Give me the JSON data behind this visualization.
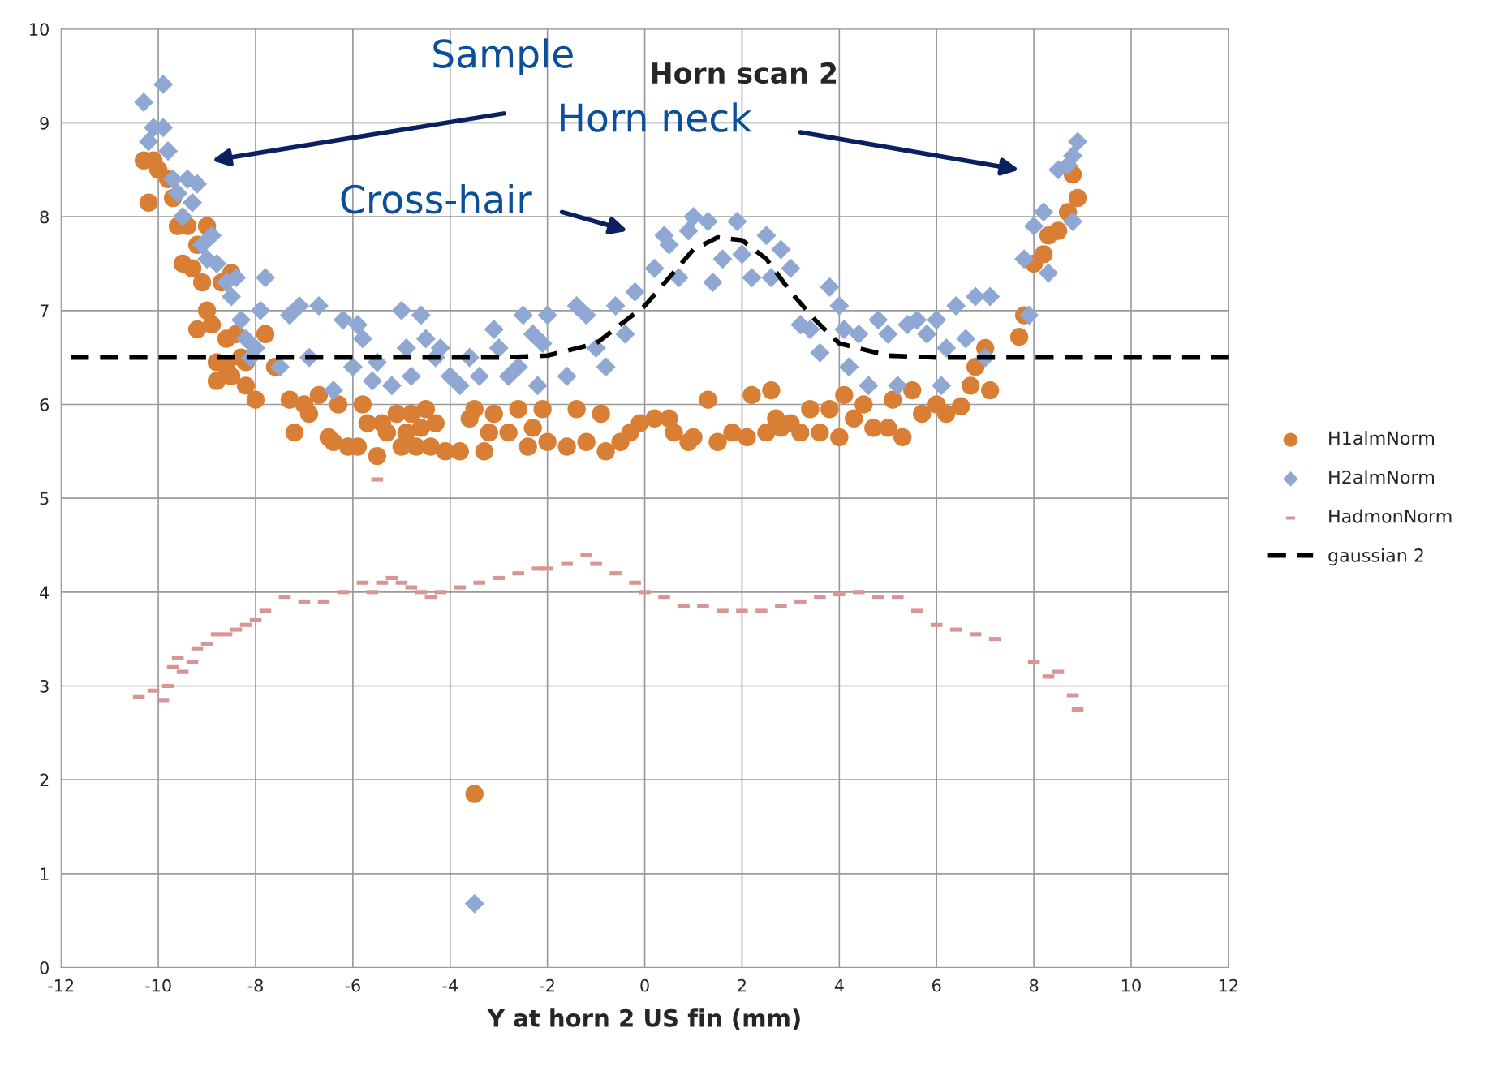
{
  "chart_data": {
    "type": "scatter",
    "title": "Horn scan 2",
    "xlabel": "Y at horn 2 US fin (mm)",
    "annotations": [
      "Sample",
      "Horn neck",
      "Cross-hair"
    ],
    "xlim": [
      -12,
      12
    ],
    "xticks": [
      -12,
      -10,
      -8,
      -6,
      -4,
      -2,
      0,
      2,
      4,
      6,
      8,
      10,
      12
    ],
    "ylim": [
      0,
      10
    ],
    "yticks": [
      0,
      1,
      2,
      3,
      4,
      5,
      6,
      7,
      8,
      9,
      10
    ],
    "grid": true,
    "legend": "right",
    "series": [
      {
        "name": "H1almNorm",
        "color": "#d97f35",
        "marker": "circle",
        "x": [
          -10.3,
          -10.1,
          -10.0,
          -10.2,
          -9.8,
          -9.7,
          -9.6,
          -9.4,
          -9.3,
          -9.5,
          -9.2,
          -9.0,
          -9.1,
          -9.0,
          -9.2,
          -8.9,
          -8.7,
          -8.5,
          -8.6,
          -8.4,
          -8.8,
          -8.6,
          -8.8,
          -8.5,
          -8.3,
          -8.2,
          -8.0,
          -8.2,
          -7.8,
          -7.6,
          -7.3,
          -7.2,
          -7.0,
          -6.9,
          -6.7,
          -6.5,
          -6.4,
          -6.3,
          -6.1,
          -5.9,
          -5.8,
          -5.7,
          -5.5,
          -5.4,
          -5.3,
          -5.1,
          -5.0,
          -4.9,
          -4.8,
          -4.7,
          -4.6,
          -4.5,
          -4.4,
          -4.3,
          -4.1,
          -3.8,
          -3.6,
          -3.5,
          -3.3,
          -3.2,
          -3.1,
          -2.8,
          -2.6,
          -2.4,
          -2.3,
          -2.1,
          -2.0,
          -1.6,
          -1.4,
          -1.2,
          -0.9,
          -0.8,
          -0.5,
          -0.3,
          -0.1,
          0.2,
          0.5,
          0.6,
          0.9,
          1.0,
          1.3,
          1.5,
          1.8,
          2.1,
          2.2,
          2.5,
          2.6,
          2.7,
          2.8,
          3.0,
          3.2,
          3.4,
          3.6,
          3.8,
          4.0,
          4.1,
          4.3,
          4.5,
          4.7,
          5.0,
          5.1,
          5.3,
          5.5,
          5.7,
          6.0,
          6.2,
          6.5,
          6.7,
          6.8,
          7.0,
          7.1,
          7.7,
          7.8,
          8.0,
          8.2,
          8.3,
          8.5,
          8.7,
          8.8,
          8.9,
          -3.5
        ],
        "values": [
          8.6,
          8.6,
          8.5,
          8.15,
          8.4,
          8.2,
          7.9,
          7.9,
          7.45,
          7.5,
          7.7,
          7.9,
          7.3,
          7.0,
          6.8,
          6.85,
          7.3,
          7.4,
          6.7,
          6.75,
          6.45,
          6.4,
          6.25,
          6.3,
          6.5,
          6.2,
          6.05,
          6.45,
          6.75,
          6.4,
          6.05,
          5.7,
          6.0,
          5.9,
          6.1,
          5.65,
          5.6,
          6.0,
          5.55,
          5.55,
          6.0,
          5.8,
          5.45,
          5.8,
          5.7,
          5.9,
          5.55,
          5.7,
          5.9,
          5.55,
          5.75,
          5.95,
          5.55,
          5.8,
          5.5,
          5.5,
          5.85,
          5.95,
          5.5,
          5.7,
          5.9,
          5.7,
          5.95,
          5.55,
          5.75,
          5.95,
          5.6,
          5.55,
          5.95,
          5.6,
          5.9,
          5.5,
          5.6,
          5.7,
          5.8,
          5.85,
          5.85,
          5.7,
          5.6,
          5.65,
          6.05,
          5.6,
          5.7,
          5.65,
          6.1,
          5.7,
          6.15,
          5.85,
          5.75,
          5.8,
          5.7,
          5.95,
          5.7,
          5.95,
          5.65,
          6.1,
          5.85,
          6.0,
          5.75,
          5.75,
          6.05,
          5.65,
          6.15,
          5.9,
          6.0,
          5.9,
          5.98,
          6.2,
          6.4,
          6.6,
          6.15,
          6.72,
          6.95,
          7.5,
          7.6,
          7.8,
          7.85,
          8.05,
          8.45,
          8.2,
          1.85
        ]
      },
      {
        "name": "H2almNorm",
        "color": "#8fa8d3",
        "marker": "diamond",
        "x": [
          -10.3,
          -9.9,
          -10.2,
          -10.1,
          -9.9,
          -9.8,
          -9.7,
          -9.6,
          -9.5,
          -9.4,
          -9.3,
          -9.2,
          -9.1,
          -9.0,
          -8.9,
          -8.8,
          -8.6,
          -8.5,
          -8.4,
          -8.3,
          -8.2,
          -8.1,
          -8.0,
          -7.8,
          -7.9,
          -7.5,
          -7.3,
          -7.1,
          -6.9,
          -6.7,
          -6.4,
          -6.2,
          -6.0,
          -5.9,
          -5.8,
          -5.6,
          -5.5,
          -5.2,
          -5.0,
          -4.9,
          -4.8,
          -4.6,
          -4.5,
          -4.3,
          -4.2,
          -4.0,
          -3.8,
          -3.6,
          -3.4,
          -3.1,
          -3.0,
          -2.8,
          -2.6,
          -2.5,
          -2.3,
          -2.2,
          -2.1,
          -2.0,
          -1.6,
          -1.4,
          -1.2,
          -1.0,
          -0.8,
          -0.6,
          -0.4,
          -0.2,
          0.2,
          0.4,
          0.5,
          0.7,
          0.9,
          1.0,
          1.3,
          1.4,
          1.6,
          1.9,
          2.0,
          2.2,
          2.5,
          2.6,
          2.8,
          3.0,
          3.2,
          3.4,
          3.6,
          3.8,
          4.0,
          4.1,
          4.2,
          4.4,
          4.6,
          4.8,
          5.0,
          5.2,
          5.4,
          5.6,
          5.8,
          6.0,
          6.1,
          6.2,
          6.4,
          6.6,
          6.8,
          7.0,
          7.1,
          7.8,
          7.9,
          8.0,
          8.2,
          8.3,
          8.5,
          8.7,
          8.8,
          8.9,
          8.8,
          -3.5
        ],
        "values": [
          9.22,
          9.41,
          8.8,
          8.95,
          8.95,
          8.7,
          8.4,
          8.25,
          8.0,
          8.4,
          8.15,
          8.35,
          7.7,
          7.55,
          7.8,
          7.5,
          7.3,
          7.15,
          7.35,
          6.9,
          6.7,
          6.5,
          6.6,
          7.35,
          7.0,
          6.4,
          6.95,
          7.05,
          6.5,
          7.05,
          6.15,
          6.9,
          6.4,
          6.85,
          6.7,
          6.25,
          6.45,
          6.2,
          7.0,
          6.6,
          6.3,
          6.95,
          6.7,
          6.5,
          6.6,
          6.3,
          6.2,
          6.5,
          6.3,
          6.8,
          6.6,
          6.3,
          6.4,
          6.95,
          6.75,
          6.2,
          6.65,
          6.95,
          6.3,
          7.05,
          6.95,
          6.6,
          6.4,
          7.05,
          6.75,
          7.2,
          7.45,
          7.8,
          7.7,
          7.35,
          7.85,
          8.0,
          7.95,
          7.3,
          7.55,
          7.95,
          7.6,
          7.35,
          7.8,
          7.35,
          7.65,
          7.45,
          6.85,
          6.8,
          6.55,
          7.25,
          7.05,
          6.8,
          6.4,
          6.75,
          6.2,
          6.9,
          6.75,
          6.2,
          6.85,
          6.9,
          6.75,
          6.9,
          6.2,
          6.6,
          7.05,
          6.7,
          7.15,
          6.5,
          7.15,
          7.55,
          6.95,
          7.9,
          8.05,
          7.4,
          8.5,
          8.55,
          8.65,
          8.8,
          7.95,
          0.68
        ]
      },
      {
        "name": "HadmonNorm",
        "color": "#d99594",
        "marker": "square",
        "x": [
          -10.4,
          -10.1,
          -9.9,
          -9.8,
          -9.7,
          -9.6,
          -9.5,
          -9.3,
          -9.2,
          -9.0,
          -8.8,
          -8.6,
          -8.4,
          -8.2,
          -8.0,
          -7.8,
          -7.4,
          -7.0,
          -6.6,
          -6.2,
          -5.8,
          -5.6,
          -5.4,
          -5.2,
          -5.0,
          -4.8,
          -4.6,
          -4.4,
          -4.2,
          -3.8,
          -3.4,
          -3.0,
          -2.6,
          -2.2,
          -2.0,
          -1.6,
          -1.2,
          -1.0,
          -0.6,
          -0.2,
          0.0,
          0.4,
          0.8,
          1.2,
          1.6,
          2.0,
          2.4,
          2.8,
          3.2,
          3.6,
          4.0,
          4.4,
          4.8,
          5.2,
          5.6,
          6.0,
          6.4,
          6.8,
          7.2,
          8.0,
          8.3,
          8.5,
          8.8,
          8.9,
          -5.5
        ],
        "values": [
          2.88,
          2.95,
          2.85,
          3.0,
          3.2,
          3.3,
          3.15,
          3.25,
          3.4,
          3.45,
          3.55,
          3.55,
          3.6,
          3.65,
          3.7,
          3.8,
          3.95,
          3.9,
          3.9,
          4.0,
          4.1,
          4.0,
          4.1,
          4.15,
          4.1,
          4.05,
          4.0,
          3.95,
          4.0,
          4.05,
          4.1,
          4.15,
          4.2,
          4.25,
          4.25,
          4.3,
          4.4,
          4.3,
          4.2,
          4.1,
          4.0,
          3.95,
          3.85,
          3.85,
          3.8,
          3.8,
          3.8,
          3.85,
          3.9,
          3.95,
          3.98,
          4.0,
          3.95,
          3.95,
          3.8,
          3.65,
          3.6,
          3.55,
          3.5,
          3.25,
          3.1,
          3.15,
          2.9,
          2.75,
          5.2
        ]
      },
      {
        "name": "gaussian 2",
        "type": "line",
        "color": "#000000",
        "marker": "none",
        "line_style": "dashed",
        "x": [
          -11.8,
          -4,
          -3,
          -2,
          -1,
          0,
          0.5,
          1,
          1.5,
          2,
          2.5,
          3,
          3.5,
          4,
          5,
          6,
          7,
          12
        ],
        "values": [
          6.5,
          6.5,
          6.5,
          6.52,
          6.65,
          7.05,
          7.35,
          7.65,
          7.78,
          7.75,
          7.55,
          7.2,
          6.9,
          6.65,
          6.52,
          6.5,
          6.5,
          6.5
        ]
      }
    ]
  }
}
